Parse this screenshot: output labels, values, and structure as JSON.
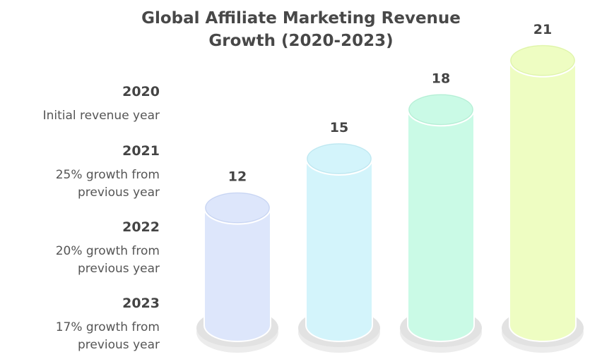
{
  "chart_data": {
    "type": "bar",
    "title": "Global Affiliate Marketing Revenue Growth (2020-2023)",
    "title_lines": [
      "Global Affiliate Marketing Revenue",
      "Growth (2020-2023)"
    ],
    "categories": [
      "2020",
      "2021",
      "2022",
      "2023"
    ],
    "values": [
      12,
      15,
      18,
      21
    ],
    "annotations": [
      [
        "Initial revenue year"
      ],
      [
        "25% growth from",
        "previous year"
      ],
      [
        "20% growth from",
        "previous year"
      ],
      [
        "17% growth from",
        "previous year"
      ]
    ],
    "colors": [
      "#dde6fb",
      "#d3f4fb",
      "#cafae6",
      "#eefdc2"
    ],
    "edge_colors": [
      "#c6d3f1",
      "#bde5ee",
      "#b4ecd3",
      "#dcf2a8"
    ],
    "grid": false,
    "legend": "left"
  }
}
